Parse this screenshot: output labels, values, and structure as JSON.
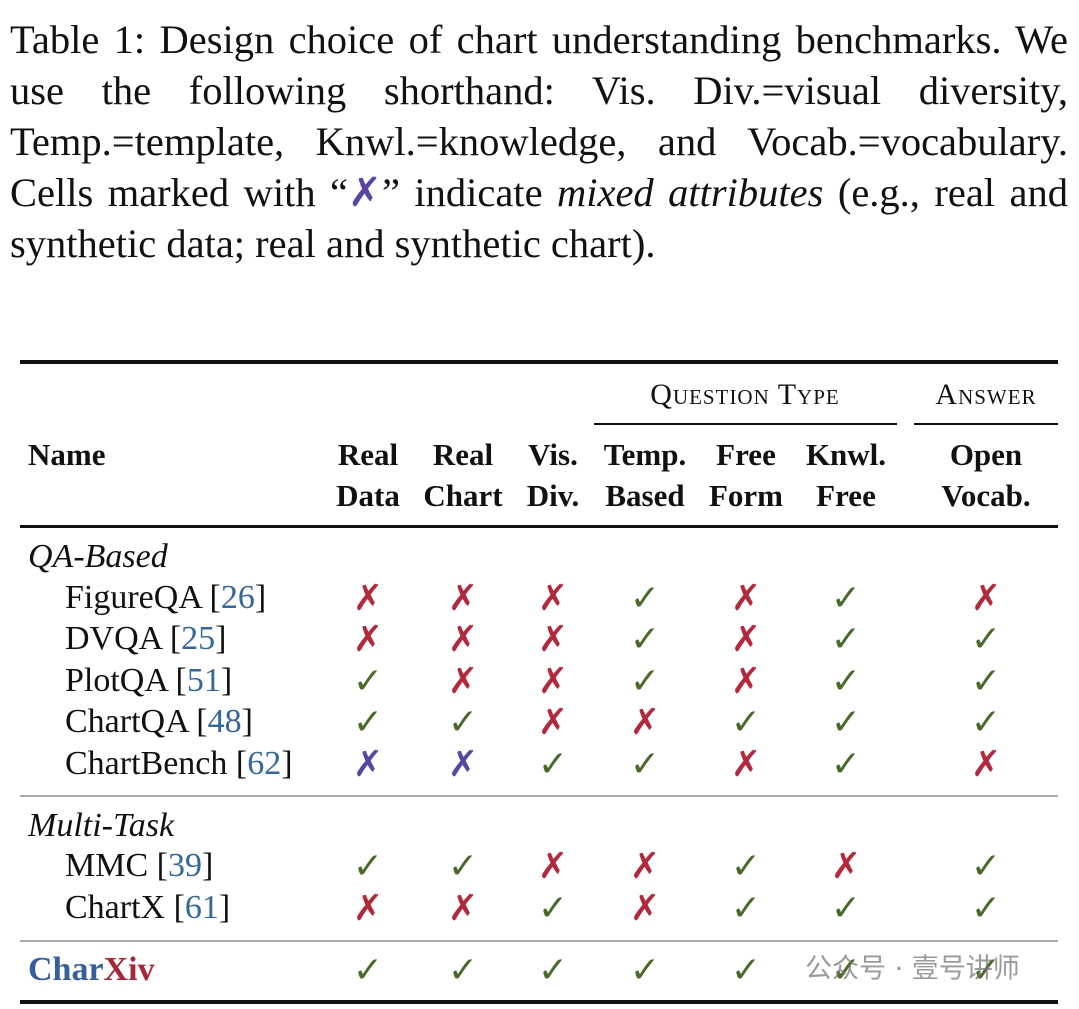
{
  "caption": {
    "label": "Table 1:",
    "text1": "Design choice of chart understanding bench­marks. We use the following shorthand: Vis. Div.=visual diversity, Temp.=template, Knwl.=knowledge, and Vocab.=vocabulary. Cells marked with “",
    "mark": "✗",
    "text2": "” indicate ",
    "italic": "mixed attributes",
    "text3": " (e.g., real and synthetic data; real and synthetic chart)."
  },
  "table": {
    "group_headers": [
      "Question Type",
      "Answer"
    ],
    "columns": [
      [
        "Name"
      ],
      [
        "Real",
        "Data"
      ],
      [
        "Real",
        "Chart"
      ],
      [
        "Vis.",
        "Div."
      ],
      [
        "Temp.",
        "Based"
      ],
      [
        "Free",
        "Form"
      ],
      [
        "Knwl.",
        "Free"
      ],
      [
        "Open",
        "Vocab."
      ]
    ],
    "ref_brackets": [
      "[",
      "]"
    ],
    "mark_colors": {
      "✓": "#4a6a2c",
      "✗": "#b3293c"
    },
    "ref_color": "#35679a",
    "sections": [
      {
        "title": "QA-Based",
        "rows": [
          {
            "name": "FigureQA",
            "ref": "26",
            "cells": [
              "✗",
              "✗",
              "✗",
              "✓",
              "✗",
              "✓",
              "✗"
            ]
          },
          {
            "name": "DVQA",
            "ref": "25",
            "cells": [
              "✗",
              "✗",
              "✗",
              "✓",
              "✗",
              "✓",
              "✓"
            ]
          },
          {
            "name": "PlotQA",
            "ref": "51",
            "cells": [
              "✓",
              "✗",
              "✗",
              "✓",
              "✗",
              "✓",
              "✓"
            ]
          },
          {
            "name": "ChartQA",
            "ref": "48",
            "cells": [
              "✓",
              "✓",
              "✗",
              "✗",
              "✓",
              "✓",
              "✓"
            ]
          },
          {
            "name": "ChartBench",
            "ref": "62",
            "cells": [
              {
                "text": "✗",
                "color": "#5a45a3"
              },
              {
                "text": "✗",
                "color": "#5a45a3"
              },
              "✓",
              "✓",
              "✗",
              "✓",
              "✗"
            ]
          }
        ]
      },
      {
        "title": "Multi-Task",
        "rows": [
          {
            "name": "MMC",
            "ref": "39",
            "cells": [
              "✓",
              "✓",
              "✗",
              "✗",
              "✓",
              "✗",
              "✓"
            ]
          },
          {
            "name": "ChartX",
            "ref": "61",
            "cells": [
              "✗",
              "✗",
              "✓",
              "✗",
              "✓",
              "✓",
              "✓"
            ]
          }
        ]
      }
    ],
    "ours": {
      "name": [
        {
          "text": "Char",
          "color": "#35609a"
        },
        {
          "text": "Xiv",
          "color": "#a3283a"
        }
      ],
      "cells": [
        "✓",
        "✓",
        "✓",
        "✓",
        "✓",
        "✓",
        "✓"
      ]
    }
  },
  "watermark": "公众号 · 壹号讲师"
}
